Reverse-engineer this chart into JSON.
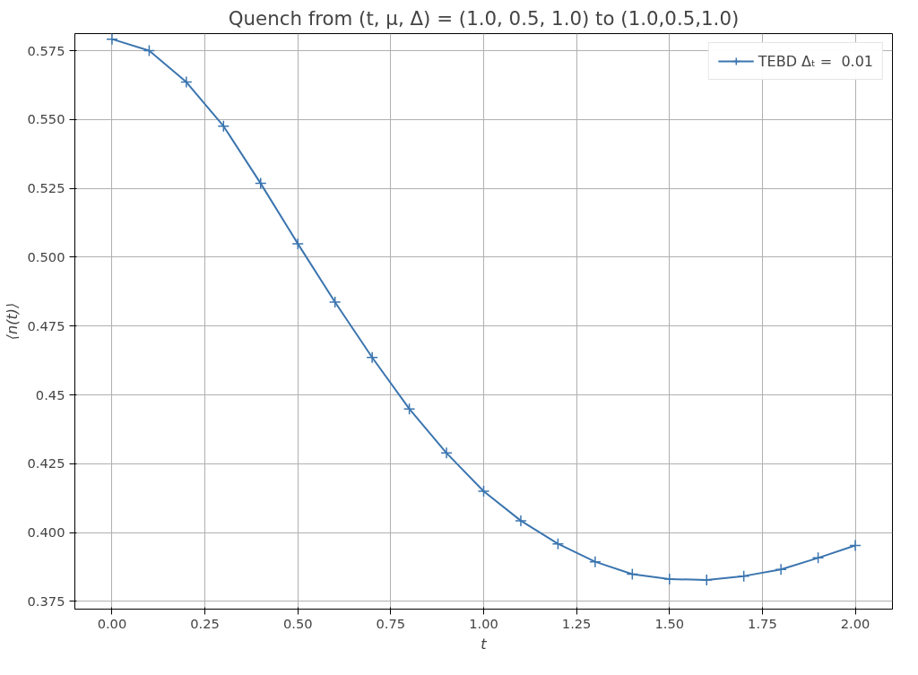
{
  "chart_data": {
    "type": "line",
    "title": "Quench from (t, μ, Δ) = (1.0, 0.5, 1.0) to (1.0,0.5,1.0)",
    "xlabel": "t",
    "ylabel": "⟨n(t)⟩",
    "x": [
      0.0,
      0.1,
      0.2,
      0.3,
      0.4,
      0.5,
      0.6,
      0.7,
      0.8,
      0.9,
      1.0,
      1.1,
      1.2,
      1.3,
      1.4,
      1.5,
      1.6,
      1.7,
      1.8,
      1.9,
      2.0
    ],
    "series": [
      {
        "name": "TEBD Δₜ =  0.01",
        "color": "#3b75af",
        "values": [
          0.5792,
          0.575,
          0.5636,
          0.5476,
          0.5268,
          0.5049,
          0.4837,
          0.4636,
          0.4449,
          0.4289,
          0.415,
          0.4043,
          0.3959,
          0.3894,
          0.3849,
          0.3831,
          0.3828,
          0.3842,
          0.3866,
          0.3908,
          0.3953
        ]
      }
    ],
    "xlim": [
      -0.1,
      2.1
    ],
    "ylim": [
      0.3722,
      0.5812
    ],
    "xticks": [
      {
        "value": 0,
        "label": "0.00"
      },
      0.25,
      {
        "value": 0.5,
        "label": "0.50"
      },
      0.75,
      {
        "value": 1,
        "label": "1.00"
      },
      1.25,
      {
        "value": 1.5,
        "label": "1.50"
      },
      1.75,
      {
        "value": 2,
        "label": "2.00"
      }
    ],
    "yticks": [
      0.375,
      {
        "value": 0.4,
        "label": "0.400"
      },
      0.425,
      0.45,
      0.475,
      {
        "value": 0.5,
        "label": "0.500"
      },
      0.525,
      {
        "value": 0.55,
        "label": "0.550"
      },
      0.575
    ],
    "grid": true,
    "legend": "top right",
    "marker": "cross",
    "line_style": "solid"
  }
}
